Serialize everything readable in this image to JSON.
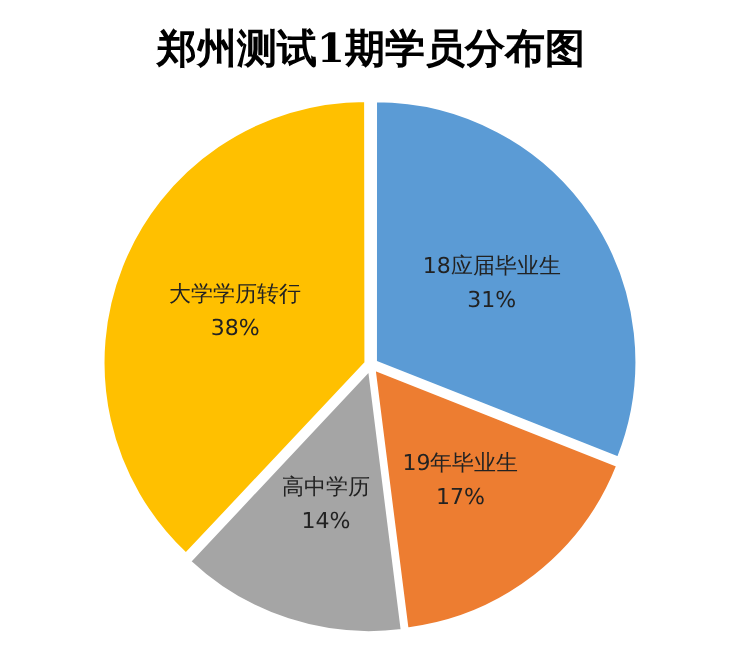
{
  "chart_data": {
    "type": "pie",
    "title": "郑州测试1期学员分布图",
    "categories": [
      "18应届毕业生",
      "19年毕业生",
      "高中学历",
      "大学学历转行"
    ],
    "values": [
      31,
      17,
      14,
      38
    ],
    "value_labels": [
      "31%",
      "17%",
      "14%",
      "38%"
    ],
    "colors": [
      "#5b9bd5",
      "#ed7d31",
      "#a5a5a5",
      "#ffc000"
    ],
    "legend": false
  }
}
